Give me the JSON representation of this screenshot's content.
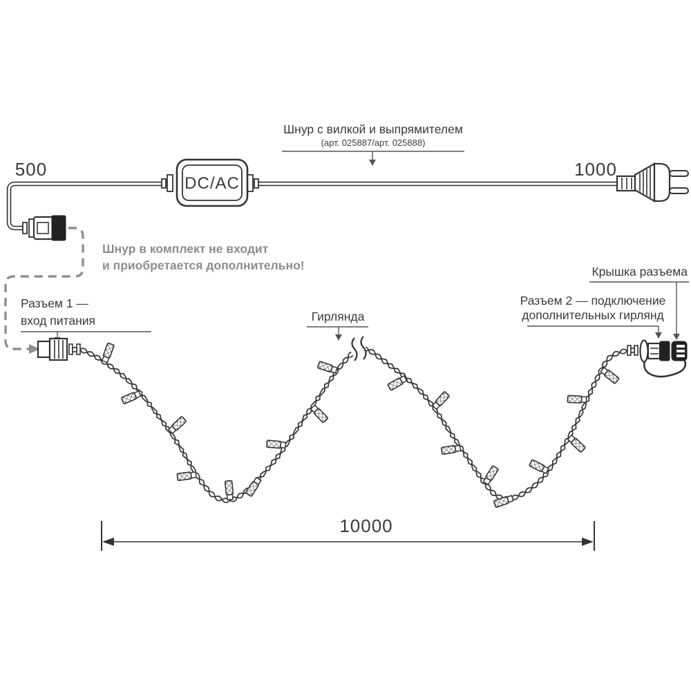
{
  "colors": {
    "line": "#333333",
    "text": "#3a3a3a",
    "muted_gray": "#8d8d8d",
    "background": "#ffffff"
  },
  "top": {
    "cord_label": "Шнур с вилкой и выпрямителем",
    "cord_articles": "(арт. 025887/арт. 025888)",
    "dim_left": "500",
    "dim_right": "1000",
    "converter": "DC/AC"
  },
  "note": {
    "line1": "Шнур в комплект не входит",
    "line2": "и приобретается дополнительно!"
  },
  "labels": {
    "connector1_line1": "Разъем 1 —",
    "connector1_line2": "вход питания",
    "garland": "Гирлянда",
    "connector2_line1": "Разъем 2 — подключение",
    "connector2_line2": "дополнительных гирлянд",
    "cap": "Крышка разъема"
  },
  "dimension": {
    "total": "10000"
  }
}
